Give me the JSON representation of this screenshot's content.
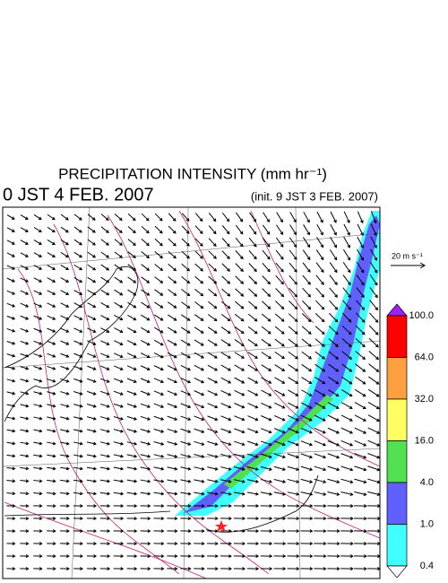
{
  "header": {
    "title": "PRECIPITATION INTENSITY (mm hr⁻¹)",
    "valid_time": "0 JST 4 FEB. 2007",
    "init_time": "(init. 9 JST 3 FEB. 2007)"
  },
  "legend": {
    "wind_scale": "20 m s⁻¹",
    "labels": [
      "100.0",
      "64.0",
      "32.0",
      "16.0",
      "4.0",
      "1.0",
      "0.4"
    ],
    "colors": [
      "#a020f0",
      "#ff0000",
      "#ffa040",
      "#ffff60",
      "#50e050",
      "#6060ff",
      "#40ffff",
      "#ffffff"
    ]
  }
}
